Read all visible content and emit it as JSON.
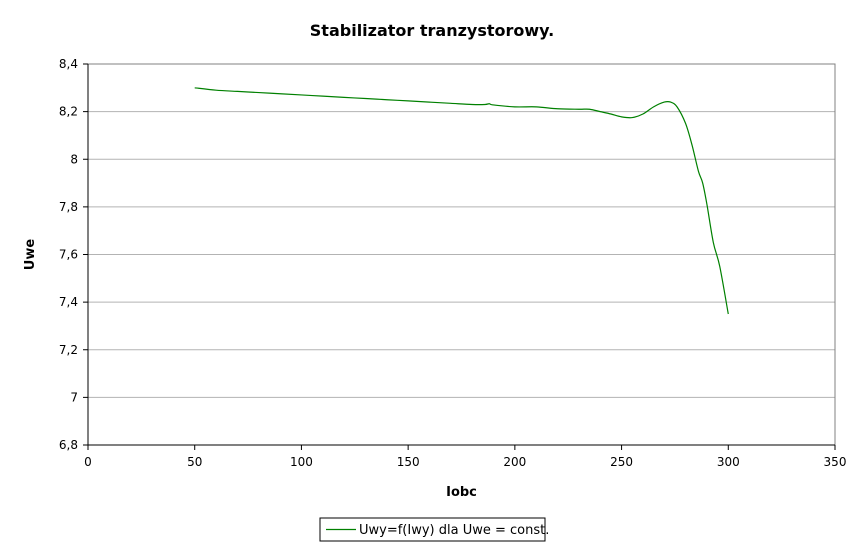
{
  "chart_data": {
    "type": "line",
    "title": "Stabilizator tranzystorowy.",
    "xlabel": "Iobc",
    "ylabel": "Uwe",
    "xlim": [
      0,
      350
    ],
    "ylim": [
      6.8,
      8.4
    ],
    "xticks": [
      0,
      50,
      100,
      150,
      200,
      250,
      300,
      350
    ],
    "yticks": [
      6.8,
      7,
      7.2,
      7.4,
      7.6,
      7.8,
      8,
      8.2,
      8.4
    ],
    "ytick_labels": [
      "6,8",
      "7",
      "7,2",
      "7,4",
      "7,6",
      "7,8",
      "8",
      "8,2",
      "8,4"
    ],
    "grid": "horizontal",
    "legend_position": "bottom",
    "series": [
      {
        "name": "Uwy=f(Iwy) dla Uwe = const.",
        "color": "#008000",
        "x": [
          50,
          60,
          70,
          80,
          90,
          100,
          110,
          120,
          130,
          140,
          150,
          160,
          170,
          180,
          186,
          188,
          190,
          200,
          210,
          220,
          230,
          235,
          240,
          245,
          250,
          255,
          260,
          265,
          270,
          273,
          276,
          280,
          283,
          286,
          288,
          290,
          293,
          296,
          300
        ],
        "y": [
          8.3,
          8.29,
          8.285,
          8.28,
          8.275,
          8.27,
          8.265,
          8.26,
          8.255,
          8.25,
          8.245,
          8.24,
          8.235,
          8.23,
          8.23,
          8.233,
          8.228,
          8.22,
          8.22,
          8.212,
          8.21,
          8.21,
          8.2,
          8.19,
          8.178,
          8.175,
          8.19,
          8.22,
          8.24,
          8.24,
          8.22,
          8.15,
          8.06,
          7.95,
          7.9,
          7.81,
          7.65,
          7.55,
          7.35
        ]
      }
    ]
  }
}
